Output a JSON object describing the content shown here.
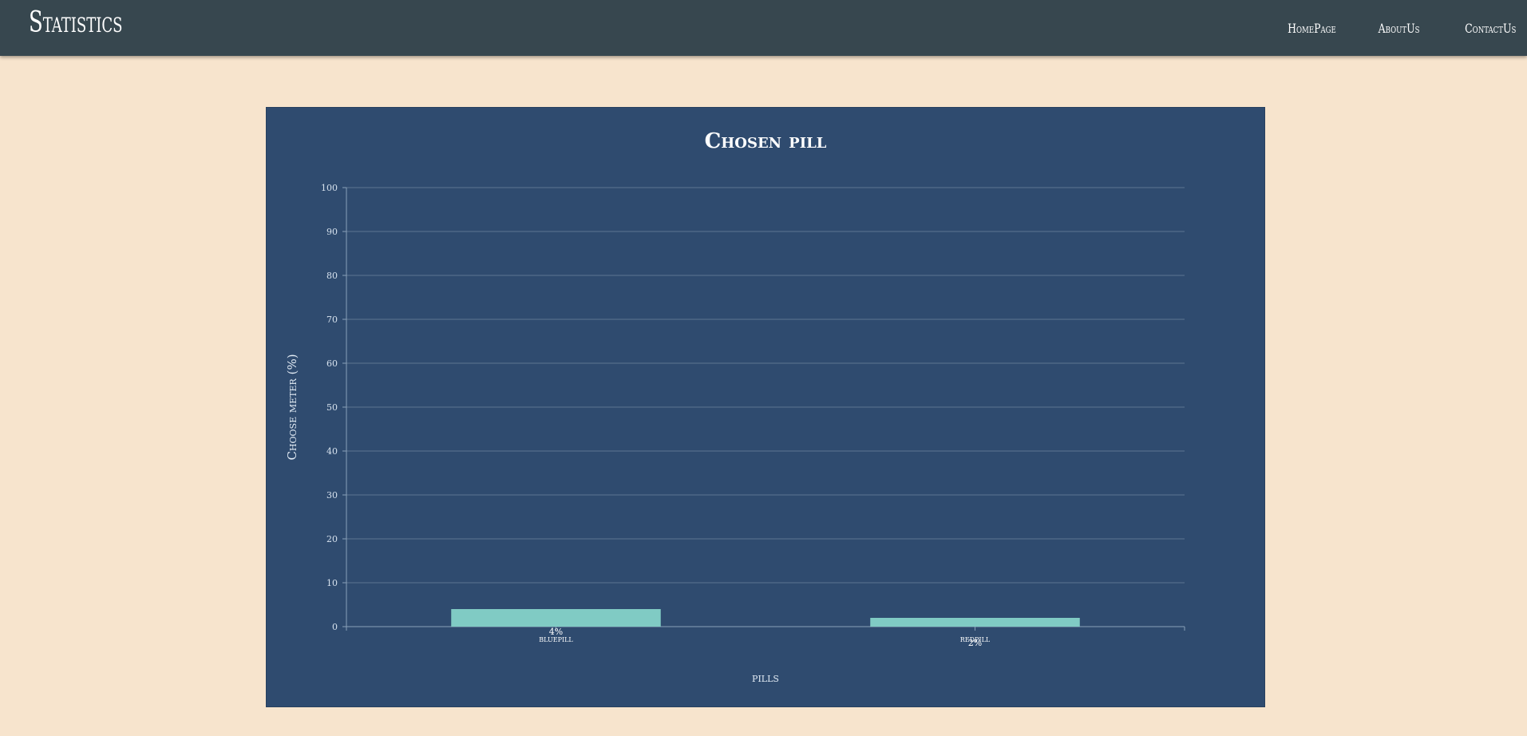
{
  "navbar": {
    "brand": "Statistics",
    "links": [
      {
        "label": "HomePage"
      },
      {
        "label": "AboutUs"
      },
      {
        "label": "ContactUs"
      }
    ]
  },
  "colors": {
    "page_background": "#f7e4cd",
    "navbar_background": "#37474f",
    "chart_background": "#2f4b6f",
    "bar_fill": "#80cbc4",
    "grid_line": "#5d7591",
    "text": "#ffffff"
  },
  "chart_data": {
    "type": "bar",
    "title": "Chosen pill",
    "xlabel": "pills",
    "ylabel": "Choose meter (%)",
    "categories": [
      "bluepill",
      "redpill"
    ],
    "values": [
      4,
      2
    ],
    "data_labels": [
      "4%",
      "2%"
    ],
    "ylim": [
      0,
      100
    ],
    "yticks": [
      0,
      10,
      20,
      30,
      40,
      50,
      60,
      70,
      80,
      90,
      100
    ],
    "grid": true,
    "legend": "none"
  }
}
